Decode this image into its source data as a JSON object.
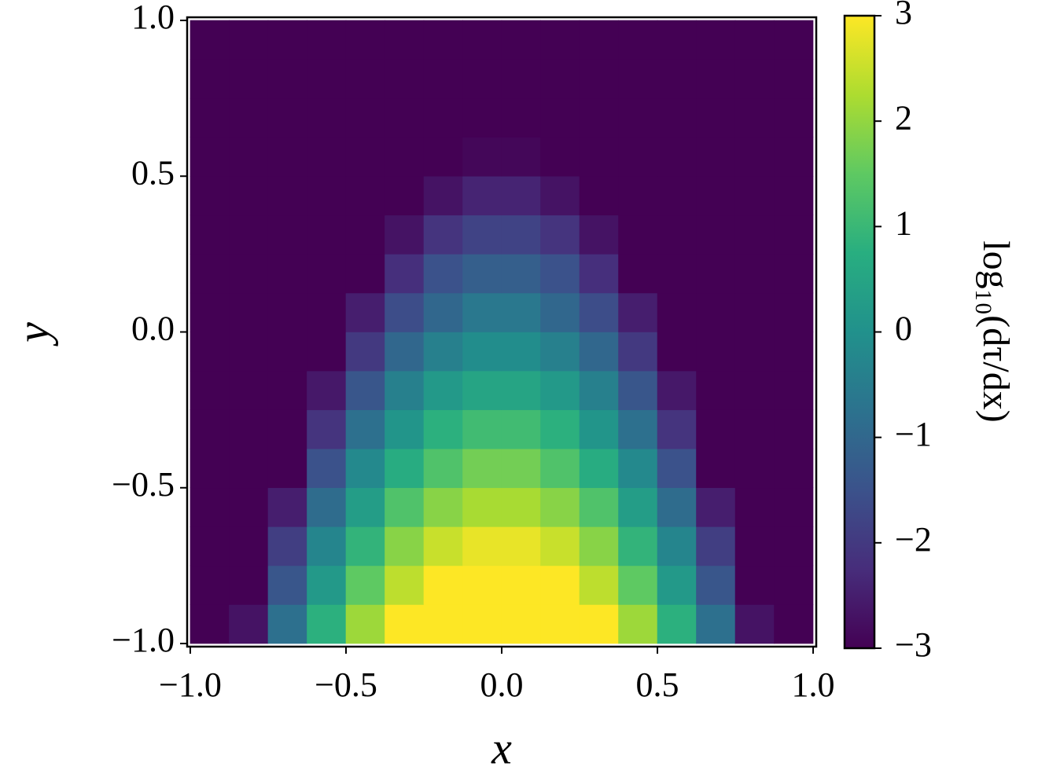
{
  "chart_data": {
    "type": "heatmap",
    "xlabel": "x",
    "ylabel": "y",
    "colorbar_label": "log₁₀(dτ/dx)",
    "colormap": "viridis",
    "clim": [
      -3,
      3
    ],
    "xlim": [
      -1.01,
      1.01
    ],
    "ylim": [
      -1.01,
      1.01
    ],
    "xticks": [
      {
        "value": -1,
        "label": "−1.0"
      },
      {
        "value": -0.5,
        "label": "−0.5"
      },
      {
        "value": 0,
        "label": "0.0"
      },
      0.5,
      {
        "value": 1,
        "label": "1.0"
      }
    ],
    "yticks": [
      {
        "value": -1,
        "label": "−1.0"
      },
      {
        "value": -0.5,
        "label": "−0.5"
      },
      {
        "value": 0,
        "label": "0.0"
      },
      0.5,
      {
        "value": 1,
        "label": "1.0"
      }
    ],
    "cticks": [
      {
        "value": -3,
        "label": "−3"
      },
      {
        "value": -2,
        "label": "−2"
      },
      {
        "value": -1,
        "label": "−1"
      },
      0,
      1,
      2,
      3
    ],
    "x": [
      -0.9375,
      -0.8125,
      -0.6875,
      -0.5625,
      -0.4375,
      -0.3125,
      -0.1875,
      -0.0625,
      0.0625,
      0.1875,
      0.3125,
      0.4375,
      0.5625,
      0.6875,
      0.8125,
      0.9375
    ],
    "y": [
      -0.9375,
      -0.8125,
      -0.6875,
      -0.5625,
      -0.4375,
      -0.3125,
      -0.1875,
      -0.0625,
      0.0625,
      0.1875,
      0.3125,
      0.4375,
      0.5625,
      0.6875,
      0.8125,
      0.9375
    ],
    "z": [
      [
        -3,
        -2.7,
        -0.8,
        0.8,
        2.1,
        3,
        3,
        3,
        3,
        3,
        3,
        2.1,
        0.8,
        -0.8,
        -2.7,
        -3
      ],
      [
        -3,
        -3,
        -1.4,
        0.2,
        1.5,
        2.4,
        3,
        3,
        3,
        3,
        2.4,
        1.5,
        0.2,
        -1.4,
        -3,
        -3
      ],
      [
        -3,
        -3,
        -1.9,
        -0.3,
        0.9,
        1.9,
        2.5,
        2.8,
        2.8,
        2.5,
        1.9,
        0.9,
        -0.3,
        -1.9,
        -3,
        -3
      ],
      [
        -3,
        -3,
        -2.5,
        -0.9,
        0.3,
        1.3,
        1.9,
        2.2,
        2.2,
        1.9,
        1.3,
        0.3,
        -0.9,
        -2.5,
        -3,
        -3
      ],
      [
        -3,
        -3,
        -3,
        -1.5,
        -0.2,
        0.7,
        1.3,
        1.7,
        1.7,
        1.3,
        0.7,
        -0.2,
        -1.5,
        -3,
        -3,
        -3
      ],
      [
        -3,
        -3,
        -3,
        -2.1,
        -0.8,
        0.1,
        0.8,
        1.1,
        1.1,
        0.8,
        0.1,
        -0.8,
        -2.1,
        -3,
        -3,
        -3
      ],
      [
        -3,
        -3,
        -3,
        -2.6,
        -1.4,
        -0.4,
        0.2,
        0.5,
        0.5,
        0.2,
        -0.4,
        -1.4,
        -2.6,
        -3,
        -3,
        -3
      ],
      [
        -3,
        -3,
        -3,
        -3,
        -2,
        -1,
        -0.4,
        -0.1,
        -0.1,
        -0.4,
        -1,
        -2,
        -3,
        -3,
        -3,
        -3
      ],
      [
        -3,
        -3,
        -3,
        -3,
        -2.5,
        -1.6,
        -1,
        -0.6,
        -0.6,
        -1,
        -1.6,
        -2.5,
        -3,
        -3,
        -3,
        -3
      ],
      [
        -3,
        -3,
        -3,
        -3,
        -3,
        -2.2,
        -1.5,
        -1.2,
        -1.2,
        -1.5,
        -2.2,
        -3,
        -3,
        -3,
        -3,
        -3
      ],
      [
        -3,
        -3,
        -3,
        -3,
        -3,
        -2.7,
        -2.1,
        -1.8,
        -1.8,
        -2.1,
        -2.7,
        -3,
        -3,
        -3,
        -3,
        -3
      ],
      [
        -3,
        -3,
        -3,
        -3,
        -3,
        -3,
        -2.7,
        -2.4,
        -2.4,
        -2.7,
        -3,
        -3,
        -3,
        -3,
        -3,
        -3
      ],
      [
        -3,
        -3,
        -3,
        -3,
        -3,
        -3,
        -3,
        -2.9,
        -2.9,
        -3,
        -3,
        -3,
        -3,
        -3,
        -3,
        -3
      ],
      [
        -3,
        -3,
        -3,
        -3,
        -3,
        -3,
        -3,
        -3,
        -3,
        -3,
        -3,
        -3,
        -3,
        -3,
        -3,
        -3
      ],
      [
        -3,
        -3,
        -3,
        -3,
        -3,
        -3,
        -3,
        -3,
        -3,
        -3,
        -3,
        -3,
        -3,
        -3,
        -3,
        -3
      ],
      [
        -3,
        -3,
        -3,
        -3,
        -3,
        -3,
        -3,
        -3,
        -3,
        -3,
        -3,
        -3,
        -3,
        -3,
        -3,
        -3
      ]
    ]
  }
}
